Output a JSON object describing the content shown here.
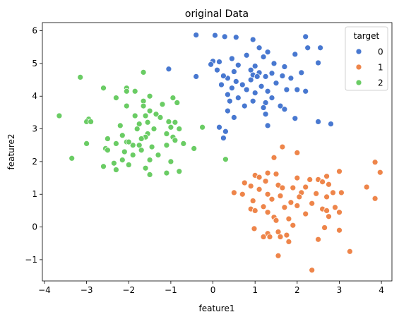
{
  "chart_data": {
    "type": "scatter",
    "title": "original Data",
    "xlabel": "feature1",
    "ylabel": "feature2",
    "xlim": [
      -4.05,
      4.25
    ],
    "ylim": [
      -1.65,
      6.25
    ],
    "x_ticks": [
      -4,
      -3,
      -2,
      -1,
      0,
      1,
      2,
      3,
      4
    ],
    "y_ticks": [
      -1,
      0,
      1,
      2,
      3,
      4,
      5,
      6
    ],
    "grid": false,
    "legend": {
      "title": "target",
      "placement": "top-right"
    },
    "series": [
      {
        "name": "0",
        "color": "#4878d0",
        "points": [
          [
            -0.4,
            5.87
          ],
          [
            0.05,
            5.86
          ],
          [
            0.28,
            5.82
          ],
          [
            0.55,
            5.8
          ],
          [
            0.95,
            5.73
          ],
          [
            2.2,
            5.82
          ],
          [
            1.1,
            5.48
          ],
          [
            1.3,
            5.35
          ],
          [
            2.25,
            5.48
          ],
          [
            2.55,
            5.48
          ],
          [
            0.8,
            5.25
          ],
          [
            1.2,
            5.2
          ],
          [
            0.45,
            5.15
          ],
          [
            0.0,
            5.07
          ],
          [
            0.15,
            5.05
          ],
          [
            1.95,
            5.28
          ],
          [
            2.5,
            5.02
          ],
          [
            -1.05,
            4.83
          ],
          [
            -0.05,
            4.97
          ],
          [
            0.6,
            4.95
          ],
          [
            1.0,
            4.92
          ],
          [
            1.45,
            5.0
          ],
          [
            1.7,
            4.9
          ],
          [
            0.5,
            4.75
          ],
          [
            0.9,
            4.8
          ],
          [
            1.1,
            4.72
          ],
          [
            1.4,
            4.7
          ],
          [
            2.1,
            4.72
          ],
          [
            0.1,
            4.8
          ],
          [
            -0.4,
            4.6
          ],
          [
            0.35,
            4.55
          ],
          [
            0.95,
            4.65
          ],
          [
            1.05,
            4.6
          ],
          [
            1.25,
            4.6
          ],
          [
            0.25,
            4.62
          ],
          [
            1.65,
            4.62
          ],
          [
            1.85,
            4.55
          ],
          [
            0.55,
            4.45
          ],
          [
            0.9,
            4.5
          ],
          [
            1.5,
            4.4
          ],
          [
            0.2,
            4.35
          ],
          [
            0.45,
            4.25
          ],
          [
            0.7,
            4.35
          ],
          [
            1.15,
            4.3
          ],
          [
            0.8,
            4.2
          ],
          [
            1.3,
            4.15
          ],
          [
            1.75,
            4.2
          ],
          [
            2.0,
            4.2
          ],
          [
            2.2,
            4.15
          ],
          [
            1.0,
            4.1
          ],
          [
            0.35,
            4.05
          ],
          [
            0.6,
            3.95
          ],
          [
            1.4,
            3.95
          ],
          [
            0.4,
            3.85
          ],
          [
            0.95,
            3.85
          ],
          [
            1.25,
            3.8
          ],
          [
            0.75,
            3.7
          ],
          [
            1.2,
            3.65
          ],
          [
            1.6,
            3.7
          ],
          [
            1.7,
            3.6
          ],
          [
            0.35,
            3.55
          ],
          [
            1.25,
            3.45
          ],
          [
            1.95,
            3.32
          ],
          [
            0.5,
            3.35
          ],
          [
            1.3,
            3.1
          ],
          [
            2.5,
            3.22
          ],
          [
            2.8,
            3.15
          ],
          [
            0.3,
            2.92
          ],
          [
            0.25,
            2.72
          ],
          [
            0.15,
            3.05
          ]
        ]
      },
      {
        "name": "1",
        "color": "#ee854a",
        "points": [
          [
            1.65,
            2.45
          ],
          [
            1.45,
            2.12
          ],
          [
            2.0,
            2.27
          ],
          [
            3.85,
            1.98
          ],
          [
            3.97,
            1.67
          ],
          [
            1.0,
            1.58
          ],
          [
            1.1,
            1.52
          ],
          [
            1.3,
            1.65
          ],
          [
            1.5,
            1.62
          ],
          [
            2.0,
            1.5
          ],
          [
            2.7,
            1.55
          ],
          [
            3.0,
            1.7
          ],
          [
            2.5,
            1.45
          ],
          [
            2.3,
            1.45
          ],
          [
            2.6,
            1.38
          ],
          [
            1.25,
            1.4
          ],
          [
            0.75,
            1.35
          ],
          [
            0.9,
            1.25
          ],
          [
            1.55,
            1.28
          ],
          [
            1.65,
            1.2
          ],
          [
            1.9,
            1.2
          ],
          [
            2.2,
            1.22
          ],
          [
            2.75,
            1.3
          ],
          [
            0.5,
            1.05
          ],
          [
            1.1,
            1.15
          ],
          [
            0.7,
            1.0
          ],
          [
            1.3,
            1.0
          ],
          [
            2.1,
            1.05
          ],
          [
            2.45,
            1.02
          ],
          [
            2.85,
            1.05
          ],
          [
            3.05,
            1.05
          ],
          [
            3.65,
            1.22
          ],
          [
            1.6,
            0.95
          ],
          [
            2.05,
            0.92
          ],
          [
            2.7,
            0.92
          ],
          [
            3.85,
            0.87
          ],
          [
            0.95,
            0.8
          ],
          [
            1.4,
            0.85
          ],
          [
            1.85,
            0.75
          ],
          [
            2.35,
            0.72
          ],
          [
            1.2,
            0.62
          ],
          [
            1.7,
            0.6
          ],
          [
            0.9,
            0.55
          ],
          [
            1.0,
            0.5
          ],
          [
            2.0,
            0.65
          ],
          [
            2.6,
            0.55
          ],
          [
            2.9,
            0.6
          ],
          [
            3.0,
            0.45
          ],
          [
            2.7,
            0.5
          ],
          [
            1.3,
            0.45
          ],
          [
            1.45,
            0.3
          ],
          [
            2.2,
            0.4
          ],
          [
            1.5,
            0.2
          ],
          [
            1.8,
            0.25
          ],
          [
            1.9,
            0.05
          ],
          [
            1.55,
            -0.15
          ],
          [
            1.3,
            -0.2
          ],
          [
            1.75,
            -0.25
          ],
          [
            1.35,
            -0.3
          ],
          [
            1.6,
            -0.3
          ],
          [
            2.5,
            -0.38
          ],
          [
            1.8,
            -0.45
          ],
          [
            2.65,
            -0.02
          ],
          [
            2.75,
            0.32
          ],
          [
            3.0,
            -0.1
          ],
          [
            3.25,
            -0.75
          ],
          [
            1.55,
            -0.88
          ],
          [
            2.35,
            -1.32
          ],
          [
            0.98,
            -0.05
          ],
          [
            1.2,
            -0.3
          ]
        ]
      },
      {
        "name": "2",
        "color": "#6acc64",
        "points": [
          [
            -3.15,
            4.58
          ],
          [
            -1.65,
            4.73
          ],
          [
            -2.6,
            4.25
          ],
          [
            -2.05,
            4.25
          ],
          [
            -2.05,
            4.15
          ],
          [
            -2.3,
            3.95
          ],
          [
            -1.85,
            4.15
          ],
          [
            -1.5,
            4.0
          ],
          [
            -0.95,
            3.95
          ],
          [
            -0.85,
            3.8
          ],
          [
            -1.65,
            3.85
          ],
          [
            -1.2,
            3.75
          ],
          [
            -2.05,
            3.7
          ],
          [
            -1.5,
            3.55
          ],
          [
            -1.65,
            3.7
          ],
          [
            -1.35,
            3.45
          ],
          [
            -1.85,
            3.4
          ],
          [
            -1.6,
            3.4
          ],
          [
            -1.25,
            3.35
          ],
          [
            -1.55,
            3.2
          ],
          [
            -2.95,
            3.3
          ],
          [
            -3.0,
            3.22
          ],
          [
            -2.9,
            3.22
          ],
          [
            -1.05,
            3.22
          ],
          [
            -0.9,
            3.2
          ],
          [
            -1.75,
            3.15
          ],
          [
            -2.2,
            3.1
          ],
          [
            -1.0,
            3.05
          ],
          [
            -1.8,
            3.0
          ],
          [
            -1.4,
            3.0
          ],
          [
            -0.8,
            3.0
          ],
          [
            -0.25,
            3.05
          ],
          [
            -3.65,
            3.4
          ],
          [
            -1.55,
            2.85
          ],
          [
            -1.1,
            2.85
          ],
          [
            -2.15,
            2.8
          ],
          [
            -1.6,
            2.75
          ],
          [
            -0.95,
            2.75
          ],
          [
            -2.5,
            2.7
          ],
          [
            -1.7,
            2.7
          ],
          [
            -0.9,
            2.65
          ],
          [
            -2.05,
            2.6
          ],
          [
            -2.3,
            2.55
          ],
          [
            -1.75,
            2.5
          ],
          [
            -1.45,
            2.45
          ],
          [
            -1.9,
            2.5
          ],
          [
            -2.55,
            2.4
          ],
          [
            -3.0,
            2.55
          ],
          [
            -1.1,
            2.5
          ],
          [
            -0.7,
            2.55
          ],
          [
            -0.45,
            2.4
          ],
          [
            -2.1,
            2.3
          ],
          [
            -1.7,
            2.35
          ],
          [
            -2.5,
            2.35
          ],
          [
            -1.9,
            2.2
          ],
          [
            -1.3,
            2.2
          ],
          [
            -3.35,
            2.1
          ],
          [
            -2.15,
            2.05
          ],
          [
            -1.5,
            2.05
          ],
          [
            -1.0,
            2.0
          ],
          [
            -2.35,
            1.95
          ],
          [
            -2.0,
            1.9
          ],
          [
            -1.6,
            1.8
          ],
          [
            -2.3,
            1.75
          ],
          [
            -2.6,
            1.85
          ],
          [
            -1.5,
            1.6
          ],
          [
            -1.1,
            1.65
          ],
          [
            -0.8,
            1.7
          ],
          [
            0.3,
            2.07
          ],
          [
            -2.0,
            2.6
          ]
        ]
      }
    ]
  }
}
